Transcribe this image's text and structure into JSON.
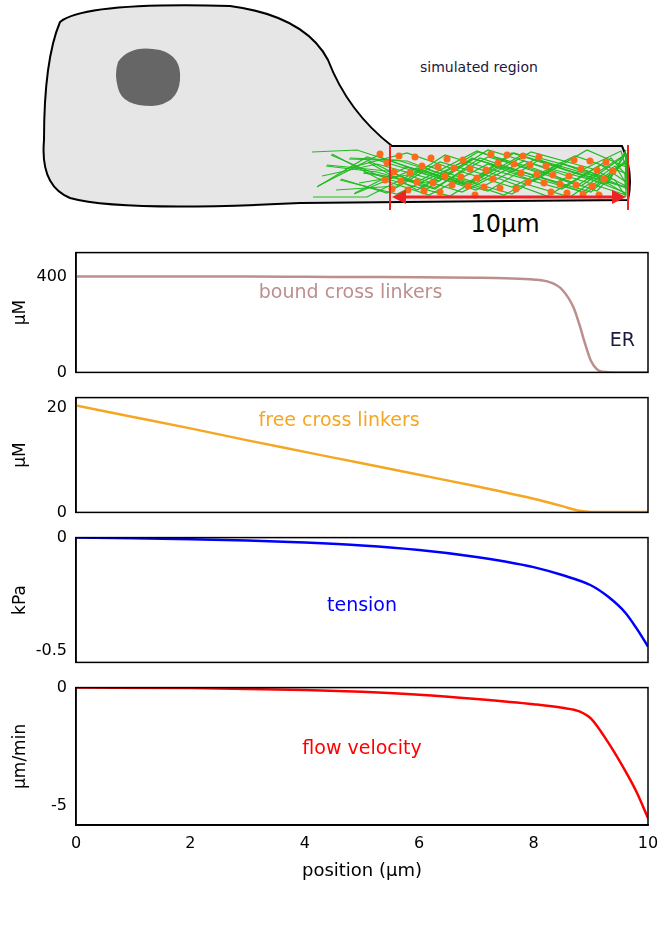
{
  "diagram": {
    "region_label": "simulated region",
    "scale_label": "10μm"
  },
  "chart_data": [
    {
      "type": "line",
      "y_label": "μM",
      "xlim": [
        0,
        10
      ],
      "xticks": [
        0,
        2,
        4,
        6,
        8,
        10
      ],
      "ylim": [
        0,
        500
      ],
      "yticks": [
        0,
        400
      ],
      "grid": false,
      "tick_labels": "y",
      "x": [
        0,
        1,
        2,
        3,
        4,
        5,
        6,
        7,
        7.5,
        8,
        8.3,
        8.5,
        8.7,
        8.8,
        8.9,
        9.0,
        9.1,
        9.2,
        9.5,
        10
      ],
      "series": [
        {
          "name": "bound cross linkers",
          "color": "#bc8f8f",
          "values": [
            400,
            400,
            400,
            400,
            399,
            398,
            397,
            395,
            393,
            388,
            375,
            345,
            270,
            200,
            120,
            50,
            15,
            3,
            0,
            0
          ]
        }
      ],
      "annotations": [
        {
          "text": "bound cross linkers",
          "x": 4.8,
          "y": 330,
          "color": "#bc8f8f"
        },
        {
          "text": "ER",
          "x": 9.55,
          "y": 130,
          "color": "#1a1a40"
        }
      ]
    },
    {
      "type": "line",
      "y_label": "μM",
      "xlim": [
        0,
        10
      ],
      "xticks": [
        0,
        2,
        4,
        6,
        8,
        10
      ],
      "ylim": [
        0,
        22
      ],
      "yticks": [
        0,
        20
      ],
      "grid": false,
      "tick_labels": "y",
      "x": [
        0,
        1,
        2,
        3,
        4,
        5,
        6,
        7,
        8,
        8.5,
        8.8,
        9,
        10
      ],
      "series": [
        {
          "name": "free cross linkers",
          "color": "#f5a623",
          "values": [
            20.5,
            18.3,
            16.1,
            13.8,
            11.6,
            9.4,
            7.2,
            5.0,
            2.6,
            1.2,
            0.3,
            0.1,
            0.1
          ]
        }
      ],
      "annotations": [
        {
          "text": "free cross linkers",
          "x": 4.6,
          "y": 17.5,
          "color": "#f5a623"
        }
      ]
    },
    {
      "type": "line",
      "y_label": "kPa",
      "xlim": [
        0,
        10
      ],
      "xticks": [
        0,
        2,
        4,
        6,
        8,
        10
      ],
      "ylim": [
        -0.55,
        0
      ],
      "yticks": [
        -0.5,
        0
      ],
      "grid": false,
      "tick_labels": "y",
      "x": [
        0,
        1,
        2,
        3,
        4,
        5,
        6,
        7,
        7.5,
        8,
        8.5,
        9,
        9.3,
        9.6,
        9.8,
        10
      ],
      "series": [
        {
          "name": "tension",
          "color": "#0000ff",
          "values": [
            0,
            -0.003,
            -0.007,
            -0.013,
            -0.022,
            -0.035,
            -0.055,
            -0.085,
            -0.105,
            -0.13,
            -0.165,
            -0.21,
            -0.26,
            -0.33,
            -0.4,
            -0.48
          ]
        }
      ],
      "annotations": [
        {
          "text": "tension",
          "x": 5,
          "y": -0.3,
          "color": "#0000ff"
        }
      ]
    },
    {
      "type": "line",
      "y_label": "μm/min",
      "x_label": "position (μm)",
      "xlim": [
        0,
        10
      ],
      "xticks": [
        0,
        2,
        4,
        6,
        8,
        10
      ],
      "ylim": [
        -5.8,
        0
      ],
      "yticks": [
        -5,
        0
      ],
      "grid": false,
      "x": [
        0,
        2,
        4,
        5,
        6,
        7,
        8,
        8.5,
        8.8,
        9,
        9.3,
        9.6,
        9.8,
        10
      ],
      "series": [
        {
          "name": "flow velocity",
          "color": "#ff0000",
          "values": [
            0,
            -0.02,
            -0.1,
            -0.18,
            -0.3,
            -0.48,
            -0.7,
            -0.85,
            -1.0,
            -1.3,
            -2.3,
            -3.5,
            -4.4,
            -5.5
          ]
        }
      ],
      "annotations": [
        {
          "text": "flow velocity",
          "x": 5,
          "y": -2.6,
          "color": "#ff0000"
        }
      ]
    }
  ]
}
